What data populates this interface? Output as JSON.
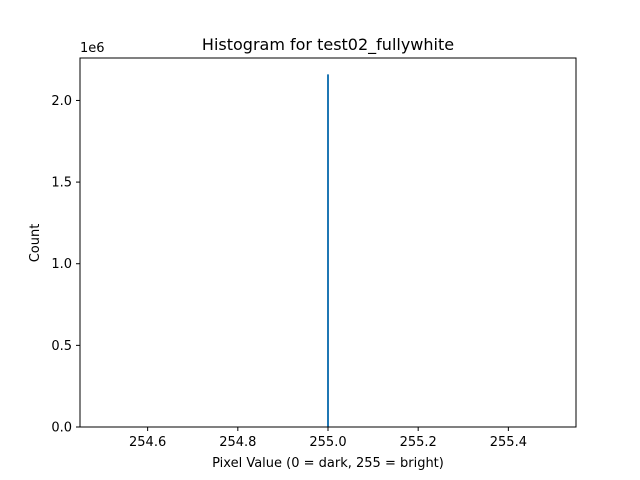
{
  "chart_data": {
    "type": "bar",
    "title": "Histogram for test02_fullywhite",
    "xlabel": "Pixel Value (0 = dark, 255 = bright)",
    "ylabel": "Count",
    "y_offset_text": "1e6",
    "xlim": [
      254.45,
      255.55
    ],
    "ylim": [
      0,
      2260000
    ],
    "xticks": [
      254.6,
      254.8,
      255.0,
      255.2,
      255.4
    ],
    "xtick_labels": [
      "254.6",
      "254.8",
      "255.0",
      "255.2",
      "255.4"
    ],
    "yticks": [
      0,
      500000,
      1000000,
      1500000,
      2000000
    ],
    "ytick_labels": [
      "0.0",
      "0.5",
      "1.0",
      "1.5",
      "2.0"
    ],
    "bins": [
      {
        "x": 255.0,
        "count": 2160000
      }
    ],
    "series_color": "#1f77b4",
    "grid": false
  }
}
